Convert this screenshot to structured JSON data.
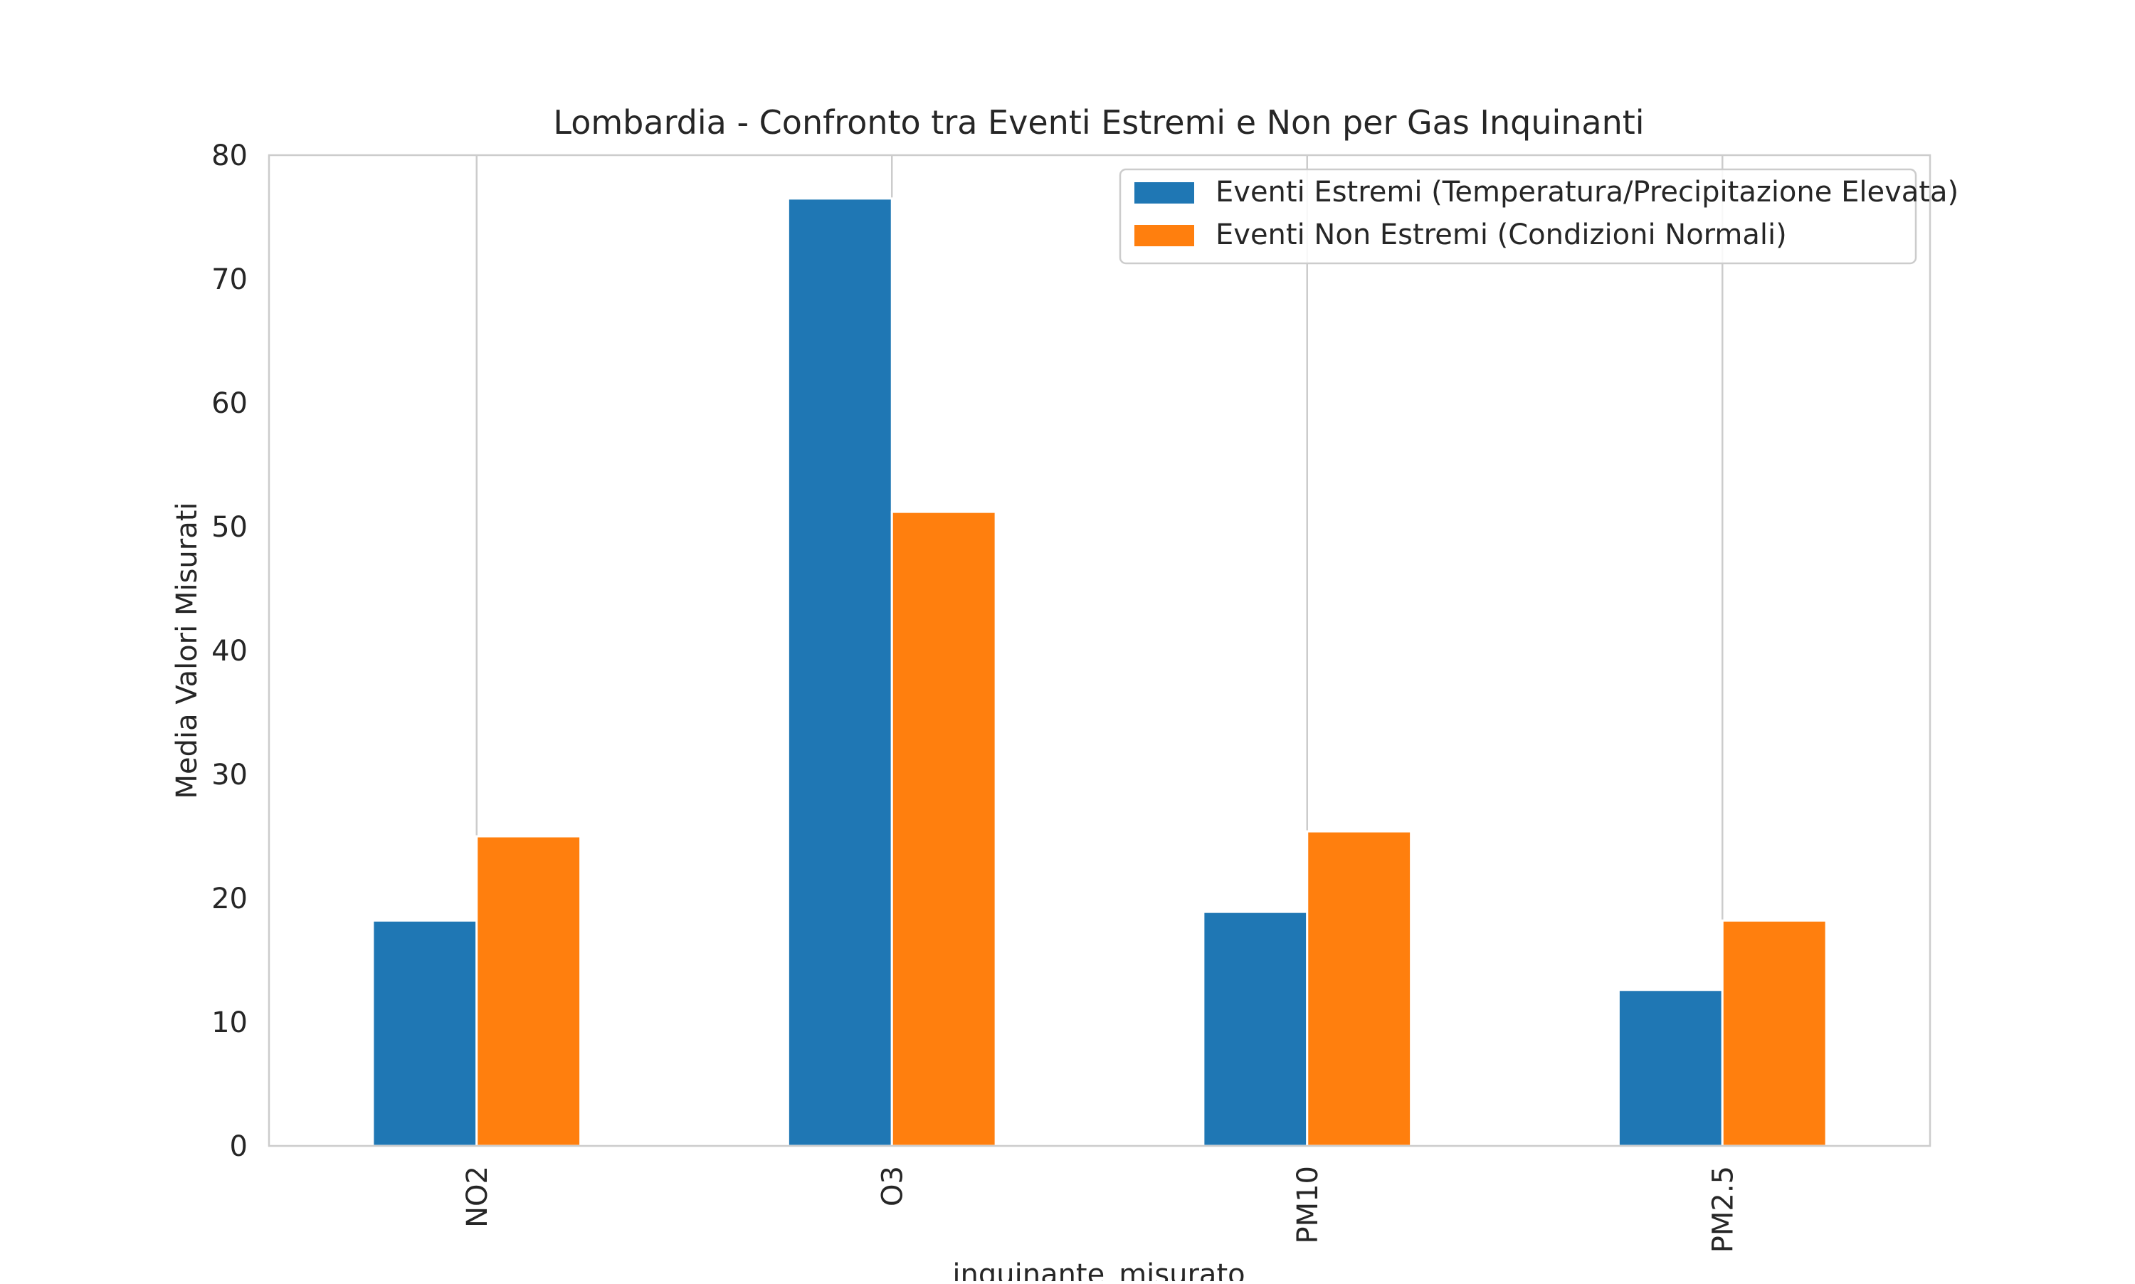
{
  "chart_data": {
    "type": "bar",
    "title": "Lombardia - Confronto tra Eventi Estremi e Non per Gas Inquinanti",
    "xlabel": "inquinante_misurato",
    "ylabel": "Media Valori Misurati",
    "categories": [
      "NO2",
      "O3",
      "PM10",
      "PM2.5"
    ],
    "ylim": [
      0,
      80
    ],
    "yticks": [
      0,
      10,
      20,
      30,
      40,
      50,
      60,
      70,
      80
    ],
    "grid": "x",
    "legend_position": "top-right",
    "series": [
      {
        "name": "Eventi Estremi (Temperatura/Precipitazione Elevata)",
        "color": "#1f77b4",
        "values": [
          18.2,
          76.5,
          18.9,
          12.6
        ]
      },
      {
        "name": "Eventi Non Estremi (Condizioni Normali)",
        "color": "#ff7f0e",
        "values": [
          25.0,
          51.2,
          25.4,
          18.2
        ]
      }
    ]
  }
}
